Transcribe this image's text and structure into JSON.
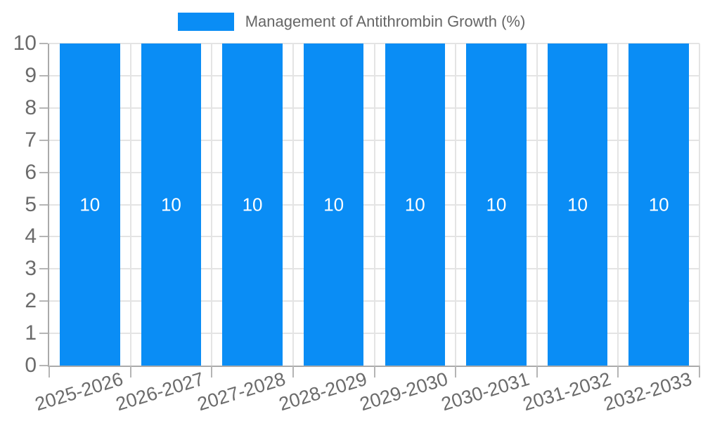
{
  "chart_data": {
    "type": "bar",
    "title": "Management of Antithrombin Growth (%)",
    "categories": [
      "2025-2026",
      "2026-2027",
      "2027-2028",
      "2028-2029",
      "2029-2030",
      "2030-2031",
      "2031-2032",
      "2032-2033"
    ],
    "values": [
      10,
      10,
      10,
      10,
      10,
      10,
      10,
      10
    ],
    "bar_value_labels": [
      "10",
      "10",
      "10",
      "10",
      "10",
      "10",
      "10",
      "10"
    ],
    "ylim": [
      0,
      10
    ],
    "ytick_labels": [
      "0",
      "1",
      "2",
      "3",
      "4",
      "5",
      "6",
      "7",
      "8",
      "9",
      "10"
    ],
    "grid": true,
    "legend_position": "top",
    "colors": {
      "bar": "#0a8df5",
      "bar_label": "#ffffff",
      "grid": "#e4e4e4",
      "axis_line": "#aaaaaa",
      "tick": "#b5b5b5",
      "axis_text": "#6b6b6b",
      "legend_text": "#666666"
    }
  }
}
